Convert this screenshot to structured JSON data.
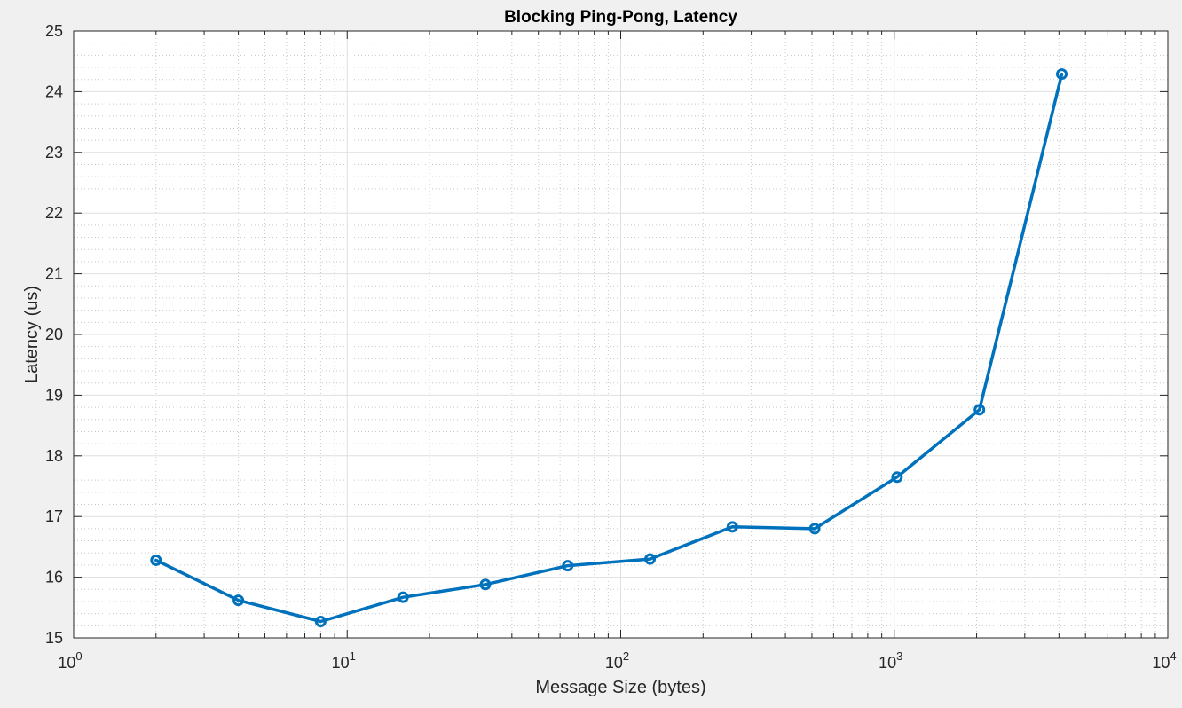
{
  "chart_data": {
    "type": "line",
    "title": "Blocking Ping-Pong, Latency",
    "xlabel": "Message Size (bytes)",
    "ylabel": "Latency (us)",
    "x_scale": "log",
    "xlim": [
      1,
      10000
    ],
    "ylim": [
      15,
      25
    ],
    "grid": true,
    "minor_grid": true,
    "x_ticks": [
      {
        "value": 1,
        "base": "10",
        "exp": "0"
      },
      {
        "value": 10,
        "base": "10",
        "exp": "1"
      },
      {
        "value": 100,
        "base": "10",
        "exp": "2"
      },
      {
        "value": 1000,
        "base": "10",
        "exp": "3"
      },
      {
        "value": 10000,
        "base": "10",
        "exp": "4"
      }
    ],
    "y_ticks": [
      "15",
      "16",
      "17",
      "18",
      "19",
      "20",
      "21",
      "22",
      "23",
      "24",
      "25"
    ],
    "series": [
      {
        "color": "#0072bd",
        "marker": "circle",
        "x": [
          2,
          4,
          8,
          16,
          32,
          64,
          128,
          256,
          512,
          1024,
          2048,
          4096
        ],
        "y": [
          16.28,
          15.62,
          15.27,
          15.67,
          15.88,
          16.19,
          16.3,
          16.83,
          16.8,
          17.65,
          18.76,
          24.29
        ]
      }
    ]
  }
}
